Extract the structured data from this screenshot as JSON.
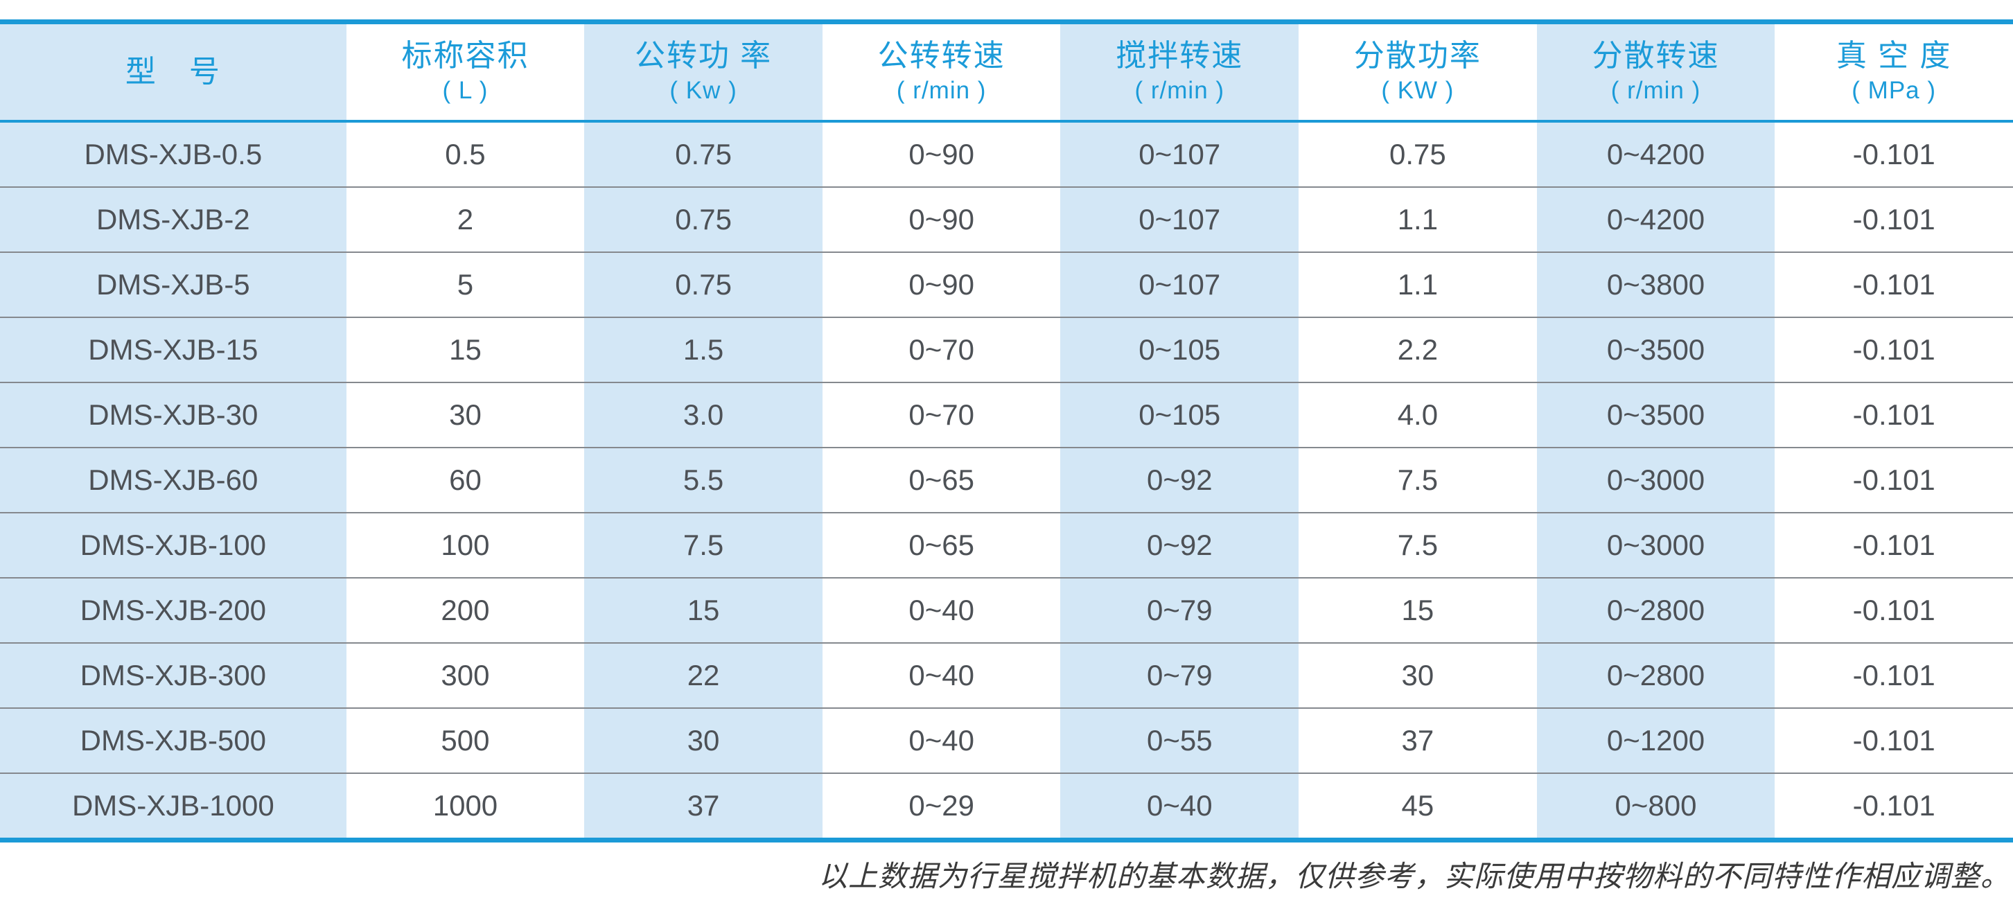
{
  "colors": {
    "accent_blue_line": "#1b9ad7",
    "header_text_blue": "#1b9bd9",
    "column_band_blue": "#d3e7f6",
    "row_divider_gray": "#85898e",
    "data_text_gray": "#4d5156"
  },
  "table": {
    "columns": [
      {
        "label": "型　号",
        "unit": ""
      },
      {
        "label": "标称容积",
        "unit": "( L )"
      },
      {
        "label": "公转功 率",
        "unit": "( Kw )"
      },
      {
        "label": "公转转速",
        "unit": "( r/min )"
      },
      {
        "label": "搅拌转速",
        "unit": "( r/min )"
      },
      {
        "label": "分散功率",
        "unit": "( KW )"
      },
      {
        "label": "分散转速",
        "unit": "( r/min )"
      },
      {
        "label": "真 空 度",
        "unit": "( MPa )"
      }
    ],
    "rows": [
      [
        "DMS-XJB-0.5",
        "0.5",
        "0.75",
        "0~90",
        "0~107",
        "0.75",
        "0~4200",
        "-0.101"
      ],
      [
        "DMS-XJB-2",
        "2",
        "0.75",
        "0~90",
        "0~107",
        "1.1",
        "0~4200",
        "-0.101"
      ],
      [
        "DMS-XJB-5",
        "5",
        "0.75",
        "0~90",
        "0~107",
        "1.1",
        "0~3800",
        "-0.101"
      ],
      [
        "DMS-XJB-15",
        "15",
        "1.5",
        "0~70",
        "0~105",
        "2.2",
        "0~3500",
        "-0.101"
      ],
      [
        "DMS-XJB-30",
        "30",
        "3.0",
        "0~70",
        "0~105",
        "4.0",
        "0~3500",
        "-0.101"
      ],
      [
        "DMS-XJB-60",
        "60",
        "5.5",
        "0~65",
        "0~92",
        "7.5",
        "0~3000",
        "-0.101"
      ],
      [
        "DMS-XJB-100",
        "100",
        "7.5",
        "0~65",
        "0~92",
        "7.5",
        "0~3000",
        "-0.101"
      ],
      [
        "DMS-XJB-200",
        "200",
        "15",
        "0~40",
        "0~79",
        "15",
        "0~2800",
        "-0.101"
      ],
      [
        "DMS-XJB-300",
        "300",
        "22",
        "0~40",
        "0~79",
        "30",
        "0~2800",
        "-0.101"
      ],
      [
        "DMS-XJB-500",
        "500",
        "30",
        "0~40",
        "0~55",
        "37",
        "0~1200",
        "-0.101"
      ],
      [
        "DMS-XJB-1000",
        "1000",
        "37",
        "0~29",
        "0~40",
        "45",
        "0~800",
        "-0.101"
      ]
    ]
  },
  "footer": {
    "note": "以上数据为行星搅拌机的基本数据，仅供参考，实际使用中按物料的不同特性作相应调整。"
  }
}
